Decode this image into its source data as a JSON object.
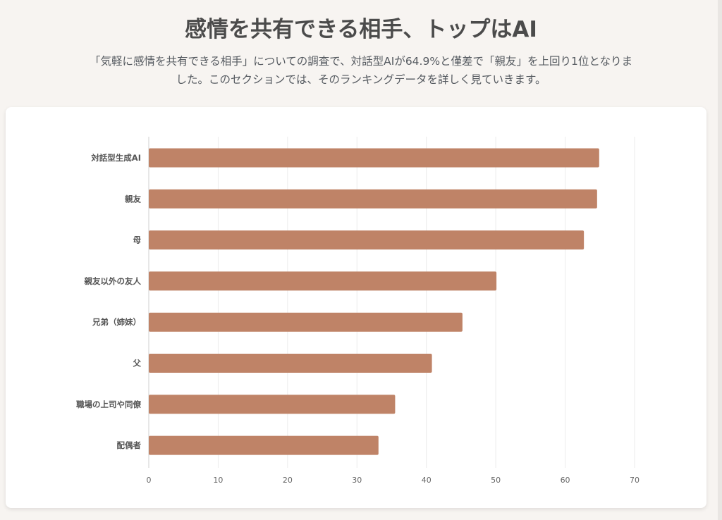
{
  "page": {
    "title": "感情を共有できる相手、トップはAI",
    "subtitle": "「気軽に感情を共有できる相手」についての調査で、対話型AIが64.9%と僅差で「親友」を上回り1位となりました。このセクションでは、そのランキングデータを詳しく見ていきます。"
  },
  "chart_data": {
    "type": "bar",
    "orientation": "horizontal",
    "categories": [
      "対話型生成AI",
      "親友",
      "母",
      "親友以外の友人",
      "兄弟（姉妹）",
      "父",
      "職場の上司や同僚",
      "配偶者"
    ],
    "values": [
      64.9,
      64.6,
      62.7,
      50.1,
      45.2,
      40.8,
      35.5,
      33.1
    ],
    "xlim": [
      0,
      70
    ],
    "xticks": [
      "0",
      "10",
      "20",
      "30",
      "40",
      "50",
      "60",
      "70"
    ],
    "grid": true,
    "legend": "none",
    "title": "",
    "xlabel": "",
    "ylabel": ""
  },
  "colors": {
    "bar": "#bf8367",
    "grid": "#ebebeb",
    "axis": "#cfcfcf"
  }
}
